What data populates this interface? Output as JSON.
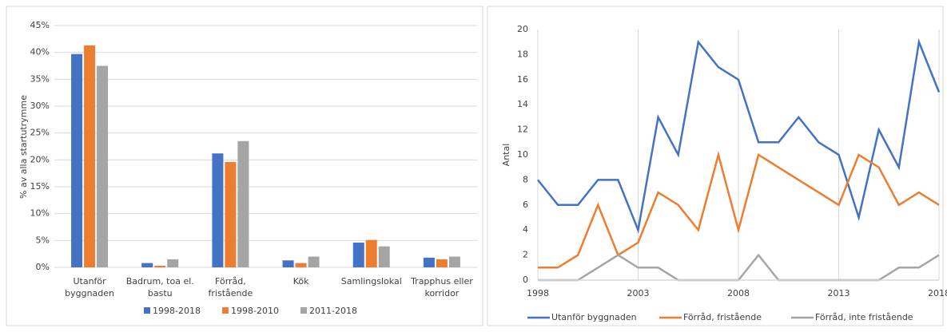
{
  "chart_data": [
    {
      "type": "bar",
      "y_label": "% av alla startutrymme",
      "categories": [
        "Utanför byggnaden",
        "Badrum, toa el. bastu",
        "Förråd, fristående",
        "Kök",
        "Samlingslokal",
        "Trapphus eller korridor"
      ],
      "series": [
        {
          "name": "1998-2018",
          "color": "#4472c4",
          "values": [
            39.7,
            0.8,
            21.2,
            1.3,
            4.6,
            1.8
          ]
        },
        {
          "name": "1998-2010",
          "color": "#ed7d31",
          "values": [
            41.3,
            0.3,
            19.6,
            0.8,
            5.1,
            1.5
          ]
        },
        {
          "name": "2011-2018",
          "color": "#a5a5a5",
          "values": [
            37.5,
            1.5,
            23.5,
            2.0,
            3.9,
            2.0
          ]
        }
      ],
      "ylim": [
        0,
        45
      ],
      "yticks": [
        {
          "value": 0,
          "label": "0%"
        },
        {
          "value": 5,
          "label": "5%"
        },
        {
          "value": 10,
          "label": "10%"
        },
        {
          "value": 15,
          "label": "15%"
        },
        {
          "value": 20,
          "label": "20%"
        },
        {
          "value": 25,
          "label": "25%"
        },
        {
          "value": 30,
          "label": "30%"
        },
        {
          "value": 35,
          "label": "35%"
        },
        {
          "value": 40,
          "label": "40%"
        },
        {
          "value": 45,
          "label": "45%"
        }
      ],
      "grid": true
    },
    {
      "type": "line",
      "y_label": "Antal",
      "x": [
        1998,
        1999,
        2000,
        2001,
        2002,
        2003,
        2004,
        2005,
        2006,
        2007,
        2008,
        2009,
        2010,
        2011,
        2012,
        2013,
        2014,
        2015,
        2016,
        2017,
        2018
      ],
      "series": [
        {
          "name": "Utanför byggnaden",
          "color": "#4472c4",
          "values": [
            8,
            6,
            6,
            8,
            8,
            4,
            13,
            10,
            19,
            17,
            16,
            11,
            11,
            13,
            11,
            10,
            5,
            12,
            9,
            19,
            15
          ]
        },
        {
          "name": "Förråd, fristående",
          "color": "#ed7d31",
          "values": [
            1,
            1,
            2,
            6,
            2,
            3,
            7,
            6,
            4,
            10,
            4,
            10,
            9,
            8,
            7,
            6,
            10,
            9,
            6,
            7,
            6
          ]
        },
        {
          "name": "Förråd, inte fristående",
          "color": "#a5a5a5",
          "values": [
            0,
            0,
            0,
            1,
            2,
            1,
            1,
            0,
            0,
            0,
            0,
            2,
            0,
            0,
            0,
            0,
            0,
            0,
            1,
            1,
            2
          ]
        }
      ],
      "xlim": [
        1998,
        2018
      ],
      "xticks": [
        1998,
        2003,
        2008,
        2013,
        2018
      ],
      "ylim": [
        0,
        20
      ],
      "yticks": [
        0,
        2,
        4,
        6,
        8,
        10,
        12,
        14,
        16,
        18,
        20
      ],
      "grid": true
    }
  ]
}
